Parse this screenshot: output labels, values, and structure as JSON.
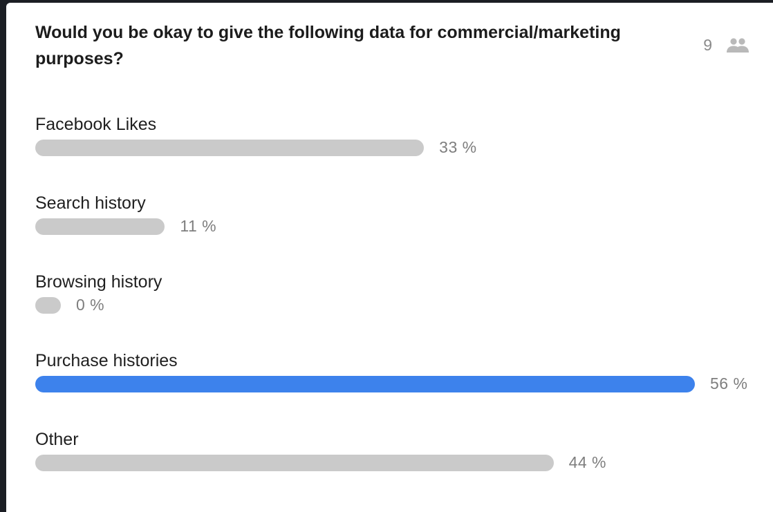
{
  "poll": {
    "question": "Would you be okay to give the following data for commercial/marketing purposes?",
    "voter_count": "9",
    "voter_icon": "people-icon",
    "colors": {
      "bar": "#cacaca",
      "leading_bar": "#3d82ec"
    },
    "options": [
      {
        "label": "Facebook Likes",
        "percent_text": "33 %",
        "share": 0.33,
        "leading": false
      },
      {
        "label": "Search history",
        "percent_text": "11 %",
        "share": 0.11,
        "leading": false
      },
      {
        "label": "Browsing history",
        "percent_text": "0 %",
        "share": 0,
        "leading": false
      },
      {
        "label": "Purchase histories",
        "percent_text": "56 %",
        "share": 0.56,
        "leading": true
      },
      {
        "label": "Other",
        "percent_text": "44 %",
        "share": 0.44,
        "leading": false
      }
    ]
  }
}
